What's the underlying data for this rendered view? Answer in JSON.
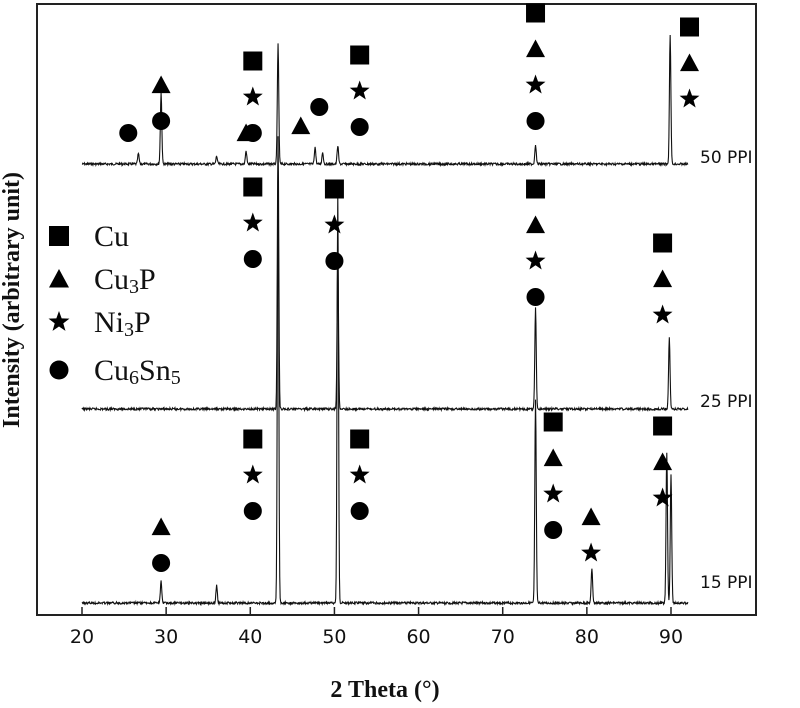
{
  "chart_data": {
    "type": "line",
    "title": "",
    "xlabel": "2 Theta (°)",
    "ylabel": "Intensity (arbitrary unit)",
    "xlim": [
      15,
      93
    ],
    "xticks": [
      20,
      30,
      40,
      50,
      60,
      70,
      80,
      90
    ],
    "yticks": [],
    "legend": {
      "placement": "middle-left",
      "entries": [
        {
          "marker": "square",
          "label": "Cu",
          "base": "Cu",
          "sub": ""
        },
        {
          "marker": "triangle",
          "label": "Cu3P",
          "base": "Cu",
          "sub": "3",
          "tail": "P"
        },
        {
          "marker": "star",
          "label": "Ni3P",
          "base": "Ni",
          "sub": "3",
          "tail": "P"
        },
        {
          "marker": "circle",
          "label": "Cu6Sn5",
          "base": "Cu",
          "sub": "6",
          "tail": "Sn",
          "sub2": "5"
        }
      ]
    },
    "series": [
      {
        "name": "50 PPI",
        "baseline": 0.0,
        "peaks": [
          {
            "x": 26.7,
            "h": 0.08
          },
          {
            "x": 29.4,
            "h": 0.55
          },
          {
            "x": 36.0,
            "h": 0.06
          },
          {
            "x": 39.5,
            "h": 0.1
          },
          {
            "x": 43.3,
            "h": 0.92
          },
          {
            "x": 47.7,
            "h": 0.13
          },
          {
            "x": 48.6,
            "h": 0.09
          },
          {
            "x": 50.4,
            "h": 0.14
          },
          {
            "x": 73.9,
            "h": 0.15
          },
          {
            "x": 89.9,
            "h": 1.0
          }
        ],
        "annotations": [
          {
            "x": 25.5,
            "markers": [
              "circle"
            ]
          },
          {
            "x": 29.4,
            "markers": [
              "triangle",
              "circle"
            ]
          },
          {
            "x": 39.5,
            "markers": [
              "triangle"
            ]
          },
          {
            "x": 40.3,
            "markers": [
              "square",
              "star",
              "circle"
            ]
          },
          {
            "x": 46.0,
            "markers": [
              "triangle"
            ]
          },
          {
            "x": 48.2,
            "markers": [
              "circle"
            ]
          },
          {
            "x": 53.0,
            "markers": [
              "square",
              "star",
              "circle"
            ]
          },
          {
            "x": 73.9,
            "markers": [
              "square",
              "triangle",
              "star",
              "circle"
            ]
          },
          {
            "x": 92.2,
            "markers": [
              "square",
              "triangle",
              "star"
            ]
          }
        ]
      },
      {
        "name": "25 PPI",
        "baseline": 0.0,
        "peaks": [
          {
            "x": 43.3,
            "h": 1.0
          },
          {
            "x": 50.4,
            "h": 0.55
          },
          {
            "x": 73.9,
            "h": 0.37
          },
          {
            "x": 89.8,
            "h": 0.26
          }
        ],
        "annotations": [
          {
            "x": 40.3,
            "markers": [
              "square",
              "star",
              "circle"
            ]
          },
          {
            "x": 50.0,
            "markers": [
              "square",
              "star",
              "circle"
            ]
          },
          {
            "x": 73.9,
            "markers": [
              "square",
              "triangle",
              "star",
              "circle"
            ]
          },
          {
            "x": 89.0,
            "markers": [
              "square",
              "triangle",
              "star"
            ]
          }
        ]
      },
      {
        "name": "15 PPI",
        "baseline": 0.0,
        "peaks": [
          {
            "x": 29.4,
            "h": 0.05
          },
          {
            "x": 36.0,
            "h": 0.04
          },
          {
            "x": 43.3,
            "h": 1.0
          },
          {
            "x": 50.4,
            "h": 0.95
          },
          {
            "x": 73.9,
            "h": 0.47
          },
          {
            "x": 80.6,
            "h": 0.08
          },
          {
            "x": 89.5,
            "h": 0.35
          },
          {
            "x": 90.0,
            "h": 0.3
          }
        ],
        "annotations": [
          {
            "x": 29.4,
            "markers": [
              "triangle",
              "circle"
            ]
          },
          {
            "x": 40.3,
            "markers": [
              "square",
              "star",
              "circle"
            ]
          },
          {
            "x": 53.0,
            "markers": [
              "square",
              "star",
              "circle"
            ]
          },
          {
            "x": 76.0,
            "markers": [
              "square",
              "triangle",
              "star",
              "circle"
            ]
          },
          {
            "x": 80.5,
            "markers": [
              "triangle",
              "star"
            ]
          },
          {
            "x": 89.0,
            "markers": [
              "square",
              "triangle",
              "star"
            ]
          }
        ]
      }
    ],
    "grid": false,
    "colors": {
      "line": "#111111",
      "marker": "#000000",
      "axis": "#222222"
    }
  }
}
